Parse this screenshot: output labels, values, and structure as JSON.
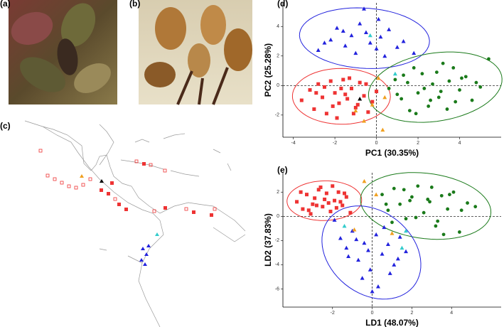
{
  "figure_labels": [
    "(a)",
    "(b)",
    "(c)"
  ],
  "chart_data": [
    {
      "type": "scatter",
      "panel_label": "(d)",
      "x_label": "PC1 (30.35%)",
      "y_label": "PC2 (25.28%)",
      "xlim": [
        -4.5,
        6
      ],
      "xticks": [
        -4,
        -2,
        0,
        2,
        4
      ],
      "ylim": [
        -3.5,
        5.6
      ],
      "yticks": [
        -2,
        0,
        2,
        4
      ],
      "zero_lines": true,
      "series": [
        {
          "color": "#2222dd",
          "shape": "triangle",
          "ellipse": true,
          "x": [
            -2.8,
            -2.2,
            -1.9,
            -1.5,
            -1.2,
            -1,
            -0.8,
            -0.5,
            -0.3,
            0,
            0.2,
            0.4,
            0.6,
            1,
            1.3,
            1.8,
            -2.5,
            -0.6,
            0.1,
            -1.6
          ],
          "y": [
            2.4,
            3.1,
            3.9,
            2.7,
            3.4,
            2.2,
            4.2,
            3.6,
            2.9,
            2.5,
            3.3,
            2,
            3.8,
            2.6,
            3,
            2.2,
            2.9,
            5.2,
            4.5,
            3.7
          ]
        },
        {
          "color": "#ee3333",
          "shape": "square",
          "ellipse": true,
          "x": [
            -3.6,
            -3.2,
            -3,
            -2.8,
            -2.6,
            -2.4,
            -2.2,
            -2,
            -1.8,
            -1.6,
            -1.4,
            -1.2,
            -1,
            -0.8,
            -0.6,
            -0.4,
            -0.2,
            0,
            -2.5,
            -1.9,
            -1.3,
            -0.9,
            -2.1,
            -1.5,
            -0.5,
            -2.9,
            -1.1,
            -1.7
          ],
          "y": [
            -1,
            -0.3,
            -1.6,
            0.1,
            -0.8,
            -1.9,
            0.3,
            -0.5,
            -1.2,
            0.4,
            -0.9,
            -0.2,
            -1.5,
            0.2,
            -0.7,
            -1.8,
            -1.1,
            -0.4,
            -0.1,
            -2.2,
            0.5,
            -1.3,
            -1.4,
            -0.6,
            0.1,
            -0.5,
            -1.9,
            -0.2
          ]
        },
        {
          "color": "#1a7a1a",
          "shape": "circle",
          "ellipse": true,
          "x": [
            0.6,
            0.9,
            1.2,
            1.5,
            1.8,
            2,
            2.2,
            2.5,
            2.7,
            3,
            3.2,
            3.5,
            3.8,
            4,
            4.3,
            4.6,
            5,
            5.4,
            1,
            1.6,
            2.3,
            2.9,
            3.4,
            4.1,
            1.3,
            2.6,
            3.7,
            4.8,
            1.9,
            3.1
          ],
          "y": [
            -0.2,
            0.4,
            -0.9,
            0.2,
            1.2,
            -0.5,
            0.8,
            -1.4,
            0.1,
            -0.8,
            1.5,
            0.3,
            -1.1,
            -0.3,
            0.6,
            -1,
            -0.1,
            1.8,
            -0.6,
            -1.7,
            -0.2,
            0.9,
            -1.6,
            0.5,
            0.7,
            -1,
            1.2,
            0.2,
            -1.9,
            -0.4
          ]
        },
        {
          "color": "#f0a020",
          "shape": "triangle",
          "ellipse": false,
          "x": [
            -0.2,
            0.3,
            -0.6,
            0.1,
            0.4,
            -1
          ],
          "y": [
            -1.3,
            -3,
            -2.4,
            0.5,
            -0.8,
            -1.7
          ]
        },
        {
          "color": "#33cccc",
          "shape": "triangle",
          "ellipse": false,
          "x": [
            0.9,
            -0.3
          ],
          "y": [
            0.8,
            3.4
          ]
        },
        {
          "color": "#000000",
          "shape": "triangle",
          "ellipse": false,
          "x": [
            -0.8
          ],
          "y": [
            -0.9
          ]
        }
      ]
    },
    {
      "type": "scatter",
      "panel_label": "(e)",
      "x_label": "LD1 (48.07%)",
      "y_label": "LD2 (37.83%)",
      "xlim": [
        -4.5,
        6.5
      ],
      "xticks": [
        -2,
        0,
        2,
        4
      ],
      "ylim": [
        -7.5,
        3.6
      ],
      "yticks": [
        -6,
        -4,
        -2,
        0,
        2
      ],
      "zero_lines": true,
      "series": [
        {
          "color": "#ee3333",
          "shape": "square",
          "ellipse": true,
          "x": [
            -3.8,
            -3.5,
            -3.3,
            -3.1,
            -2.9,
            -2.7,
            -2.5,
            -2.3,
            -2.1,
            -1.9,
            -1.7,
            -1.5,
            -1.3,
            -1.1,
            -3.6,
            -3,
            -2.6,
            -2.2,
            -1.8,
            -1.4,
            -3.2,
            -2.4,
            -2,
            -1.6,
            -2.8
          ],
          "y": [
            1.2,
            0.6,
            1.8,
            0.2,
            1.5,
            2.2,
            0.8,
            1.9,
            0.4,
            1.3,
            2,
            0.9,
            1.6,
            0.3,
            2,
            1,
            2.4,
            1.1,
            0.7,
            1.9,
            0.5,
            1.4,
            2.5,
            1.2,
            0.9
          ]
        },
        {
          "color": "#1a7a1a",
          "shape": "circle",
          "ellipse": true,
          "x": [
            0.5,
            0.8,
            1.1,
            1.4,
            1.7,
            2,
            2.3,
            2.6,
            2.9,
            3.2,
            3.5,
            3.8,
            4.1,
            4.4,
            4.8,
            5.2,
            1,
            1.6,
            2.2,
            2.8,
            3.3,
            3.9,
            4.5,
            0.7,
            1.9,
            3,
            3.6
          ],
          "y": [
            1.8,
            0.5,
            2.3,
            1,
            -0.2,
            1.6,
            2.5,
            0.3,
            1.2,
            -0.8,
            1.7,
            0.6,
            2,
            -1.3,
            1.1,
            0.8,
            -0.5,
            2.2,
            -0.1,
            1.4,
            -0.4,
            1.8,
            0.5,
            1,
            1.3,
            2.4,
            -1.5
          ]
        },
        {
          "color": "#2222dd",
          "shape": "triangle",
          "ellipse": true,
          "x": [
            -1.9,
            -1.6,
            -1.3,
            -1,
            -0.7,
            -0.4,
            -0.1,
            0.2,
            0.5,
            0.8,
            1.1,
            1.4,
            1.7,
            -1.2,
            -0.5,
            0.3,
            0.9,
            -0.8,
            0,
            1.3,
            -0.2,
            0.6
          ],
          "y": [
            -0.3,
            -1.8,
            -2.6,
            -1.2,
            -3.6,
            -2.2,
            -4.4,
            -1.5,
            -3.1,
            -2.3,
            -4,
            -1.7,
            -2.9,
            -3.3,
            -5.1,
            -5.8,
            -4.7,
            -1.9,
            -6.2,
            -3.5,
            -2.8,
            -0.9
          ]
        },
        {
          "color": "#f0a020",
          "shape": "triangle",
          "ellipse": false,
          "x": [
            -0.4,
            0.2,
            -0.9,
            1
          ],
          "y": [
            2.9,
            1.8,
            -1.1,
            -1.4
          ]
        },
        {
          "color": "#33cccc",
          "shape": "triangle",
          "ellipse": false,
          "x": [
            -1.4,
            1.5,
            1.7
          ],
          "y": [
            -0.8,
            -2.6,
            -1.2
          ]
        }
      ]
    }
  ]
}
